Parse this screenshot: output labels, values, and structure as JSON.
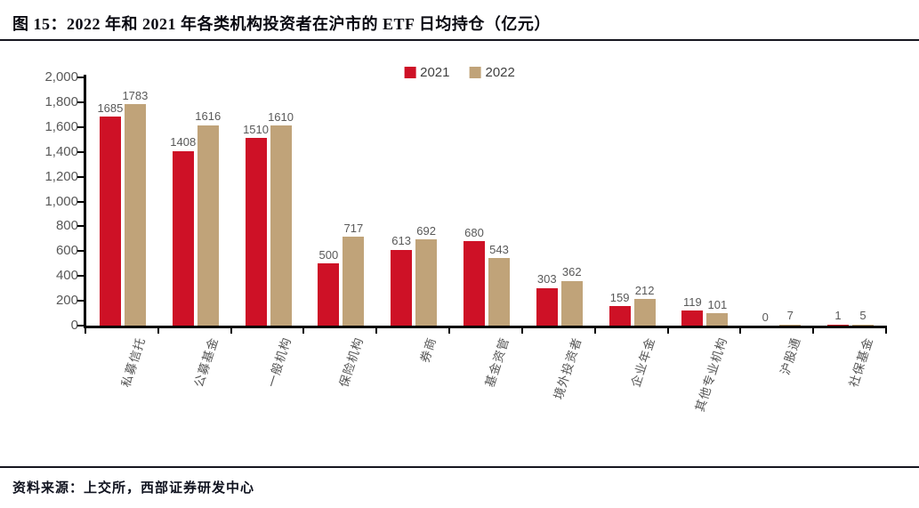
{
  "title": "图 15：2022 年和 2021 年各类机构投资者在沪市的 ETF 日均持仓（亿元）",
  "source": "资料来源：上交所，西部证券研发中心",
  "colors": {
    "series_2021": "#CE1126",
    "series_2022": "#C0A379",
    "axis": "#000000",
    "value_label": "#595959",
    "rule": "#16161f"
  },
  "chart_data": {
    "type": "bar",
    "title": "图 15：2022 年和 2021 年各类机构投资者在沪市的 ETF 日均持仓（亿元）",
    "categories": [
      "私募信托",
      "公募基金",
      "一般机构",
      "保险机构",
      "券商",
      "基金资管",
      "境外投资者",
      "企业年金",
      "其他专业机构",
      "沪股通",
      "社保基金"
    ],
    "series": [
      {
        "name": "2021",
        "color": "#CE1126",
        "values": [
          1685,
          1408,
          1510,
          500,
          613,
          680,
          303,
          159,
          119,
          0,
          1
        ]
      },
      {
        "name": "2022",
        "color": "#C0A379",
        "values": [
          1783,
          1616,
          1610,
          717,
          692,
          543,
          362,
          212,
          101,
          7,
          5
        ]
      }
    ],
    "xlabel": "",
    "ylabel": "",
    "ylim": [
      0,
      2000
    ],
    "ytick_step": 200,
    "ytick_labels": [
      "0",
      "200",
      "400",
      "600",
      "800",
      "1,000",
      "1,200",
      "1,400",
      "1,600",
      "1,800",
      "2,000"
    ],
    "legend_position": "top-center",
    "grid": false,
    "data_labels": true
  }
}
